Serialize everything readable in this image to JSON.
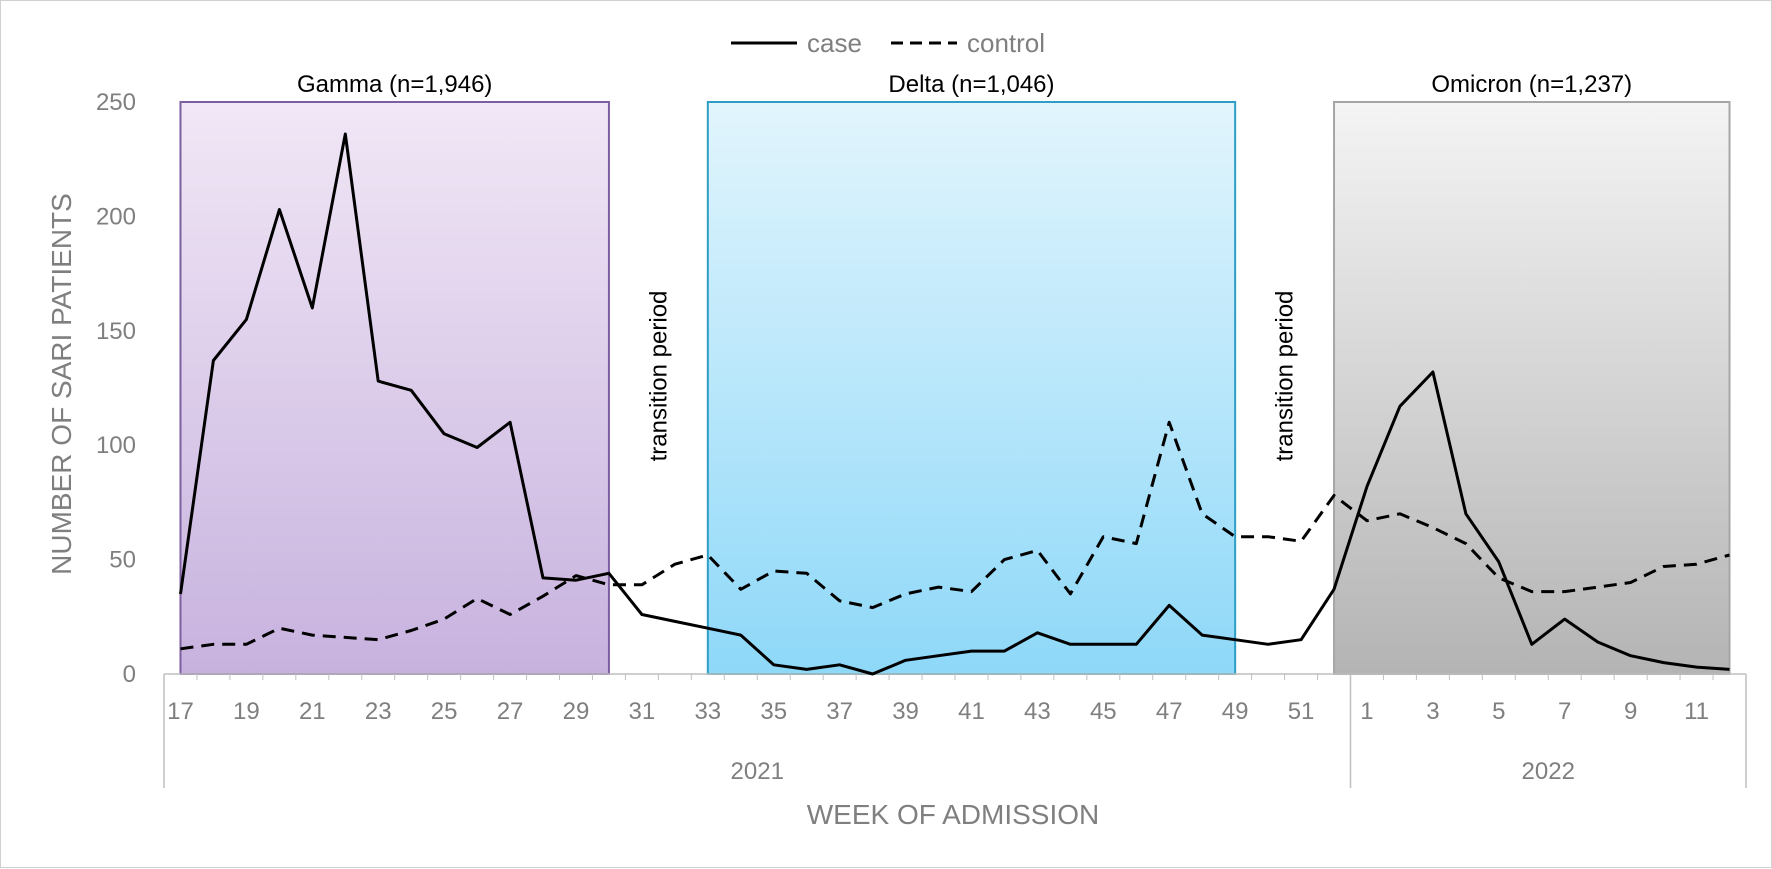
{
  "chart_data": {
    "type": "line",
    "xlabel": "WEEK OF ADMISSION",
    "ylabel": "NUMBER OF SARI PATIENTS",
    "ylim": [
      0,
      250
    ],
    "yticks": [
      "0",
      "50",
      "100",
      "150",
      "200",
      "250"
    ],
    "weeks": [
      17,
      18,
      19,
      20,
      21,
      22,
      23,
      24,
      25,
      26,
      27,
      28,
      29,
      30,
      31,
      32,
      33,
      34,
      35,
      36,
      37,
      38,
      39,
      40,
      41,
      42,
      43,
      44,
      45,
      46,
      47,
      48,
      49,
      50,
      51,
      52,
      1,
      2,
      3,
      4,
      5,
      6,
      7,
      8,
      9,
      10,
      11,
      12
    ],
    "tick_labels": [
      "17",
      "19",
      "21",
      "23",
      "25",
      "27",
      "29",
      "31",
      "33",
      "35",
      "37",
      "39",
      "41",
      "43",
      "45",
      "47",
      "49",
      "51",
      "1",
      "3",
      "5",
      "7",
      "9",
      "11"
    ],
    "years": [
      {
        "label": "2021",
        "from": 17,
        "to": 52
      },
      {
        "label": "2022",
        "from": 1,
        "to": 12
      }
    ],
    "legend": {
      "case": "case",
      "control": "control",
      "position": "top-center"
    },
    "series": [
      {
        "name": "case",
        "style": "solid",
        "values": [
          35,
          137,
          155,
          203,
          160,
          236,
          128,
          124,
          105,
          99,
          110,
          42,
          41,
          44,
          26,
          23,
          20,
          17,
          4,
          2,
          4,
          0,
          6,
          8,
          10,
          10,
          18,
          13,
          13,
          13,
          30,
          17,
          15,
          13,
          15,
          37,
          82,
          117,
          132,
          70,
          49,
          13,
          24,
          14,
          8,
          5,
          3,
          2
        ]
      },
      {
        "name": "control",
        "style": "dashed",
        "values": [
          11,
          13,
          13,
          20,
          17,
          16,
          15,
          19,
          24,
          33,
          26,
          34,
          43,
          39,
          39,
          48,
          52,
          37,
          45,
          44,
          32,
          29,
          35,
          38,
          36,
          50,
          54,
          35,
          60,
          57,
          110,
          70,
          60,
          60,
          58,
          78,
          67,
          70,
          64,
          57,
          42,
          36,
          36,
          38,
          40,
          47,
          48,
          52
        ]
      }
    ],
    "periods": [
      {
        "label": "Gamma (n=1,946)",
        "from_index": 0,
        "to_index": 13,
        "color_top": "#f1e7f6",
        "color_bottom": "#c7b2de",
        "border": "#7d5fa1"
      },
      {
        "label": "Delta (n=1,046)",
        "from_index": 16,
        "to_index": 32,
        "color_top": "#e2f5fd",
        "color_bottom": "#8ed8f8",
        "border": "#2e9ec4"
      },
      {
        "label": "Omicron (n=1,237)",
        "from_index": 35,
        "to_index": 47,
        "color_top": "#f4f4f4",
        "color_bottom": "#b4b4b4",
        "border": "#a6a6a6"
      }
    ],
    "annotations": [
      {
        "text": "transition period",
        "week_index": 14.5
      },
      {
        "text": "transition period",
        "week_index": 33.5
      }
    ]
  }
}
